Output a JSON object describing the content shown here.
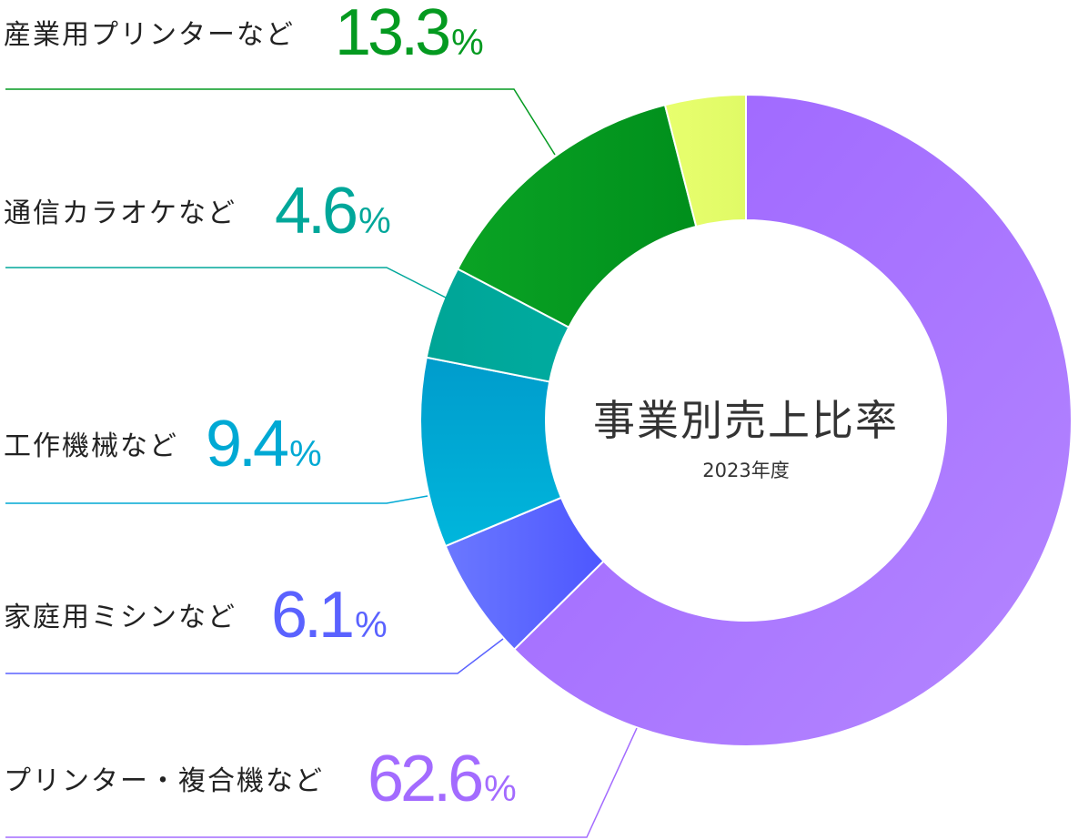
{
  "chart_data": {
    "type": "pie",
    "title": "事業別売上比率",
    "subtitle": "2023年度",
    "percent_sign": "%",
    "segments": [
      {
        "label": "プリンター・複合機など",
        "value": 62.6,
        "value_text": "62.6",
        "color": "#a36bff"
      },
      {
        "label": "家庭用ミシンなど",
        "value": 6.1,
        "value_text": "6.1",
        "color": "#5a62ff"
      },
      {
        "label": "工作機械など",
        "value": 9.4,
        "value_text": "9.4",
        "color": "#00a9d4"
      },
      {
        "label": "通信カラオケなど",
        "value": 4.6,
        "value_text": "4.6",
        "color": "#00a79a"
      },
      {
        "label": "産業用プリンターなど",
        "value": 13.3,
        "value_text": "13.3",
        "color": "#049a20"
      },
      {
        "label": "",
        "value": 4.0,
        "value_text": "",
        "color": "#e4ff6a"
      }
    ]
  }
}
